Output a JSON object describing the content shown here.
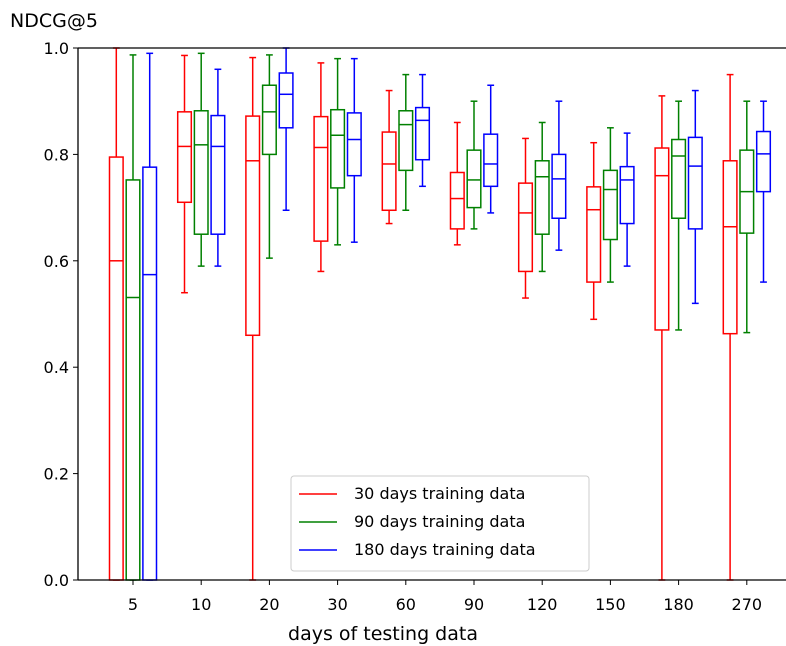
{
  "chart_data": {
    "type": "box",
    "ylabel": "NDCG@5",
    "xlabel": "days of testing data",
    "ylim": [
      0.0,
      1.0
    ],
    "yticks": [
      "0.0",
      "0.2",
      "0.4",
      "0.6",
      "0.8",
      "1.0"
    ],
    "categories": [
      "5",
      "10",
      "20",
      "30",
      "60",
      "90",
      "120",
      "150",
      "180",
      "270"
    ],
    "legend_position": "bottom-center",
    "grid": false,
    "series": [
      {
        "name": "30 days training data",
        "color": "#ff0000",
        "boxes": [
          {
            "whislo": 0.0,
            "q1": 0.0,
            "med": 0.6,
            "q3": 0.795,
            "whishi": 1.0
          },
          {
            "whislo": 0.54,
            "q1": 0.71,
            "med": 0.815,
            "q3": 0.88,
            "whishi": 0.986
          },
          {
            "whislo": 0.0,
            "q1": 0.46,
            "med": 0.788,
            "q3": 0.872,
            "whishi": 0.982
          },
          {
            "whislo": 0.58,
            "q1": 0.637,
            "med": 0.813,
            "q3": 0.871,
            "whishi": 0.972
          },
          {
            "whislo": 0.67,
            "q1": 0.695,
            "med": 0.782,
            "q3": 0.842,
            "whishi": 0.92
          },
          {
            "whislo": 0.63,
            "q1": 0.66,
            "med": 0.717,
            "q3": 0.766,
            "whishi": 0.86
          },
          {
            "whislo": 0.53,
            "q1": 0.58,
            "med": 0.69,
            "q3": 0.746,
            "whishi": 0.83
          },
          {
            "whislo": 0.49,
            "q1": 0.56,
            "med": 0.696,
            "q3": 0.739,
            "whishi": 0.822
          },
          {
            "whislo": 0.0,
            "q1": 0.47,
            "med": 0.76,
            "q3": 0.812,
            "whishi": 0.91
          },
          {
            "whislo": 0.0,
            "q1": 0.463,
            "med": 0.664,
            "q3": 0.788,
            "whishi": 0.95
          }
        ]
      },
      {
        "name": "90 days training data",
        "color": "#008000",
        "boxes": [
          {
            "whislo": 0.0,
            "q1": 0.0,
            "med": 0.531,
            "q3": 0.752,
            "whishi": 0.987
          },
          {
            "whislo": 0.59,
            "q1": 0.65,
            "med": 0.818,
            "q3": 0.882,
            "whishi": 0.99
          },
          {
            "whislo": 0.605,
            "q1": 0.8,
            "med": 0.88,
            "q3": 0.93,
            "whishi": 0.987
          },
          {
            "whislo": 0.63,
            "q1": 0.737,
            "med": 0.836,
            "q3": 0.884,
            "whishi": 0.98
          },
          {
            "whislo": 0.695,
            "q1": 0.77,
            "med": 0.856,
            "q3": 0.882,
            "whishi": 0.95
          },
          {
            "whislo": 0.66,
            "q1": 0.7,
            "med": 0.752,
            "q3": 0.808,
            "whishi": 0.9
          },
          {
            "whislo": 0.58,
            "q1": 0.65,
            "med": 0.758,
            "q3": 0.788,
            "whishi": 0.86
          },
          {
            "whislo": 0.56,
            "q1": 0.64,
            "med": 0.734,
            "q3": 0.77,
            "whishi": 0.85
          },
          {
            "whislo": 0.47,
            "q1": 0.68,
            "med": 0.797,
            "q3": 0.828,
            "whishi": 0.9
          },
          {
            "whislo": 0.465,
            "q1": 0.652,
            "med": 0.73,
            "q3": 0.808,
            "whishi": 0.9
          }
        ]
      },
      {
        "name": "180 days training data",
        "color": "#0000ff",
        "boxes": [
          {
            "whislo": 0.0,
            "q1": 0.0,
            "med": 0.574,
            "q3": 0.776,
            "whishi": 0.99
          },
          {
            "whislo": 0.59,
            "q1": 0.65,
            "med": 0.815,
            "q3": 0.873,
            "whishi": 0.96
          },
          {
            "whislo": 0.695,
            "q1": 0.85,
            "med": 0.913,
            "q3": 0.953,
            "whishi": 1.0
          },
          {
            "whislo": 0.635,
            "q1": 0.76,
            "med": 0.828,
            "q3": 0.878,
            "whishi": 0.98
          },
          {
            "whislo": 0.74,
            "q1": 0.79,
            "med": 0.864,
            "q3": 0.888,
            "whishi": 0.95
          },
          {
            "whislo": 0.69,
            "q1": 0.74,
            "med": 0.782,
            "q3": 0.838,
            "whishi": 0.93
          },
          {
            "whislo": 0.62,
            "q1": 0.68,
            "med": 0.754,
            "q3": 0.8,
            "whishi": 0.9
          },
          {
            "whislo": 0.59,
            "q1": 0.67,
            "med": 0.752,
            "q3": 0.777,
            "whishi": 0.84
          },
          {
            "whislo": 0.52,
            "q1": 0.66,
            "med": 0.778,
            "q3": 0.832,
            "whishi": 0.92
          },
          {
            "whislo": 0.56,
            "q1": 0.73,
            "med": 0.801,
            "q3": 0.843,
            "whishi": 0.9
          }
        ]
      }
    ]
  }
}
